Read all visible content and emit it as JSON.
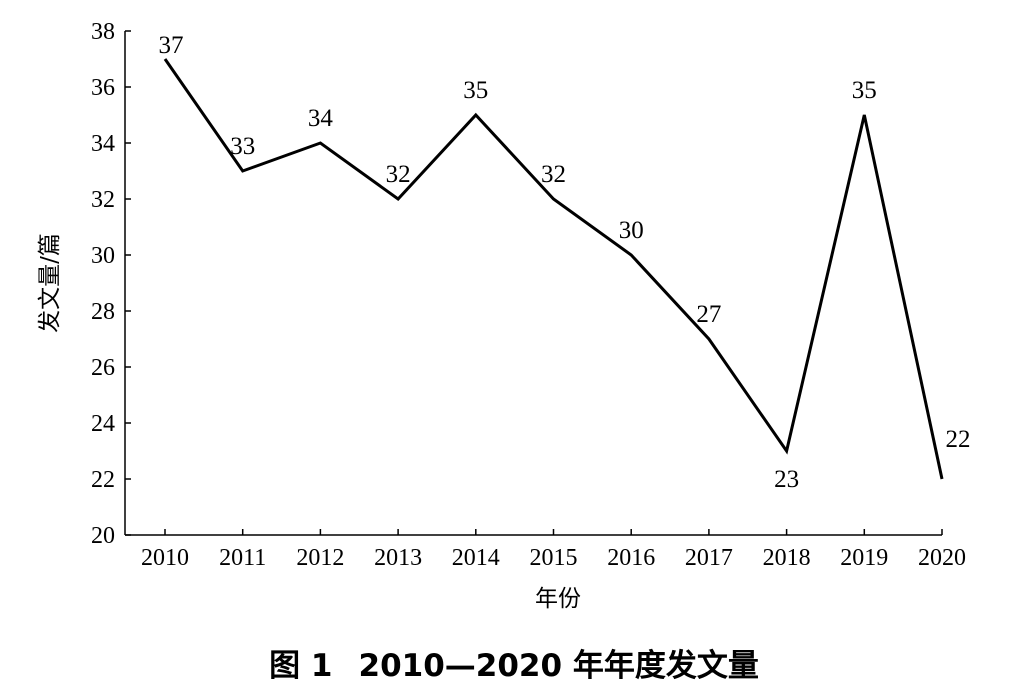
{
  "caption": {
    "figure_label": "图 1",
    "text": "2010—2020 年年度发文量"
  },
  "chart_data": {
    "type": "line",
    "x": [
      "2010",
      "2011",
      "2012",
      "2013",
      "2014",
      "2015",
      "2016",
      "2017",
      "2018",
      "2019",
      "2020"
    ],
    "series": [
      {
        "values": [
          37,
          33,
          34,
          32,
          35,
          32,
          30,
          27,
          23,
          35,
          22
        ]
      }
    ],
    "xlabel": "年份",
    "ylabel": "发文量/篇",
    "ylim": [
      20,
      38
    ],
    "yticks": [
      20,
      22,
      24,
      26,
      28,
      30,
      32,
      34,
      36,
      38
    ],
    "grid": false,
    "legend": "none",
    "line_color": "#000000"
  }
}
